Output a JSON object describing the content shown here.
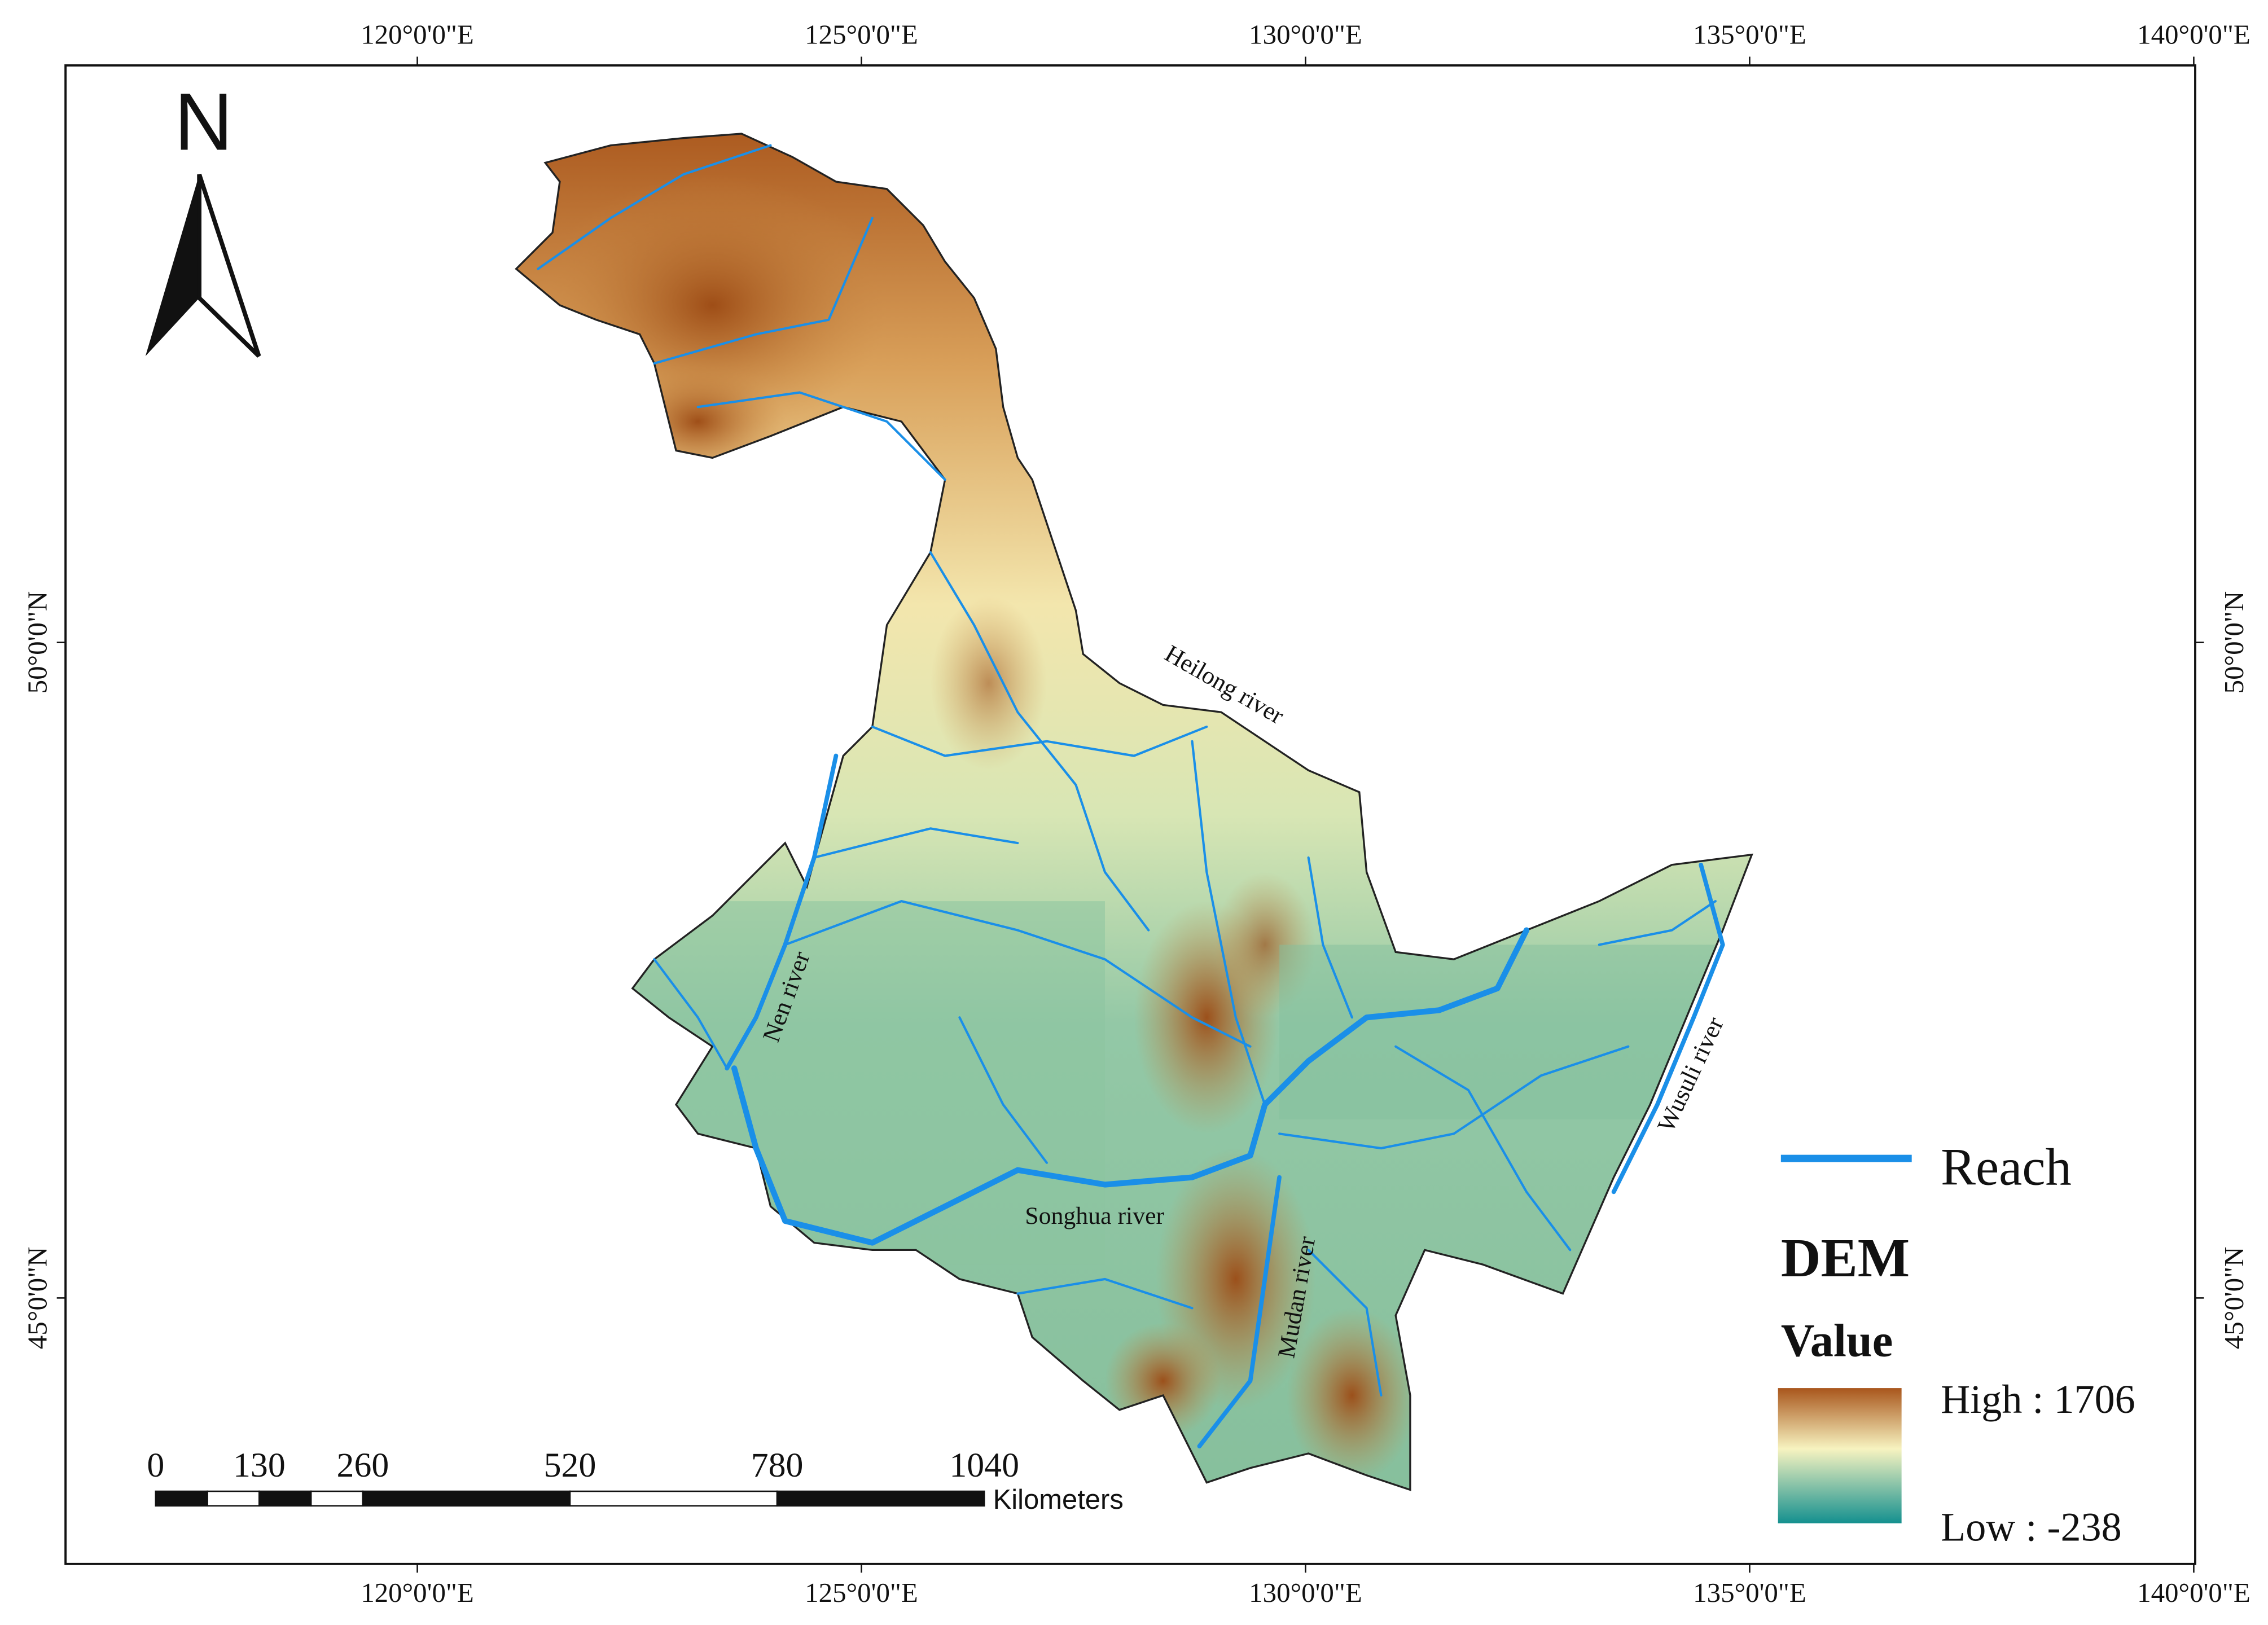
{
  "map": {
    "north_label": "N",
    "graticule": {
      "longitudes": [
        {
          "value": 120,
          "label": "120°0'0\"E"
        },
        {
          "value": 125,
          "label": "125°0'0\"E"
        },
        {
          "value": 130,
          "label": "130°0'0\"E"
        },
        {
          "value": 135,
          "label": "135°0'0\"E"
        },
        {
          "value": 140,
          "label": "140°0'0\"E"
        }
      ],
      "latitudes": [
        {
          "value": 50,
          "label": "50°0'0\"N"
        },
        {
          "value": 45,
          "label": "45°0'0\"N"
        }
      ]
    },
    "river_labels": {
      "heilong": "Heilong river",
      "nen": "Nen river",
      "songhua": "Songhua river",
      "mudan": "Mudan river",
      "wusuli": "Wusuli river"
    },
    "legend": {
      "reach": "Reach",
      "dem": "DEM",
      "value": "Value",
      "high": "High : 1706",
      "low": "Low : -238"
    },
    "scale_bar": {
      "ticks": [
        0,
        130,
        260,
        520,
        780,
        1040
      ],
      "unit": "Kilometers"
    }
  }
}
